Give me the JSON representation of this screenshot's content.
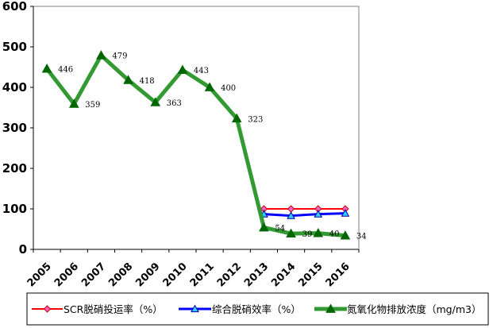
{
  "chart_data": {
    "type": "line",
    "title": "",
    "xlabel": "",
    "ylabel": "",
    "categories": [
      "2005",
      "2006",
      "2007",
      "2008",
      "2009",
      "2010",
      "2011",
      "2012",
      "2013",
      "2014",
      "2015",
      "2016"
    ],
    "ylim": [
      0,
      600
    ],
    "yticks": [
      "0",
      "100",
      "200",
      "300",
      "400",
      "500",
      "600"
    ],
    "grid": false,
    "legend_position": "bottom",
    "series": [
      {
        "name": "SCR脱硝投运率（%）",
        "color": "#ff0000",
        "marker": "diamond",
        "marker_fill": "#ff66cc",
        "values": [
          null,
          null,
          null,
          null,
          null,
          null,
          null,
          null,
          100,
          100,
          100,
          100
        ],
        "labels": []
      },
      {
        "name": "综合脱硝效率（%）",
        "color": "#0000ff",
        "marker": "triangle",
        "marker_fill": "#33ccff",
        "values": [
          null,
          null,
          null,
          null,
          null,
          null,
          null,
          null,
          87,
          83,
          87,
          89
        ],
        "labels": []
      },
      {
        "name": "氮氧化物排放浓度（mg/m3）",
        "color": "#339933",
        "marker": "triangle",
        "marker_fill": "#006600",
        "values": [
          446,
          359,
          479,
          418,
          363,
          443,
          400,
          323,
          54,
          39,
          40,
          34
        ],
        "labels": [
          "446",
          "359",
          "479",
          "418",
          "363",
          "443",
          "400",
          "323",
          "54",
          "39",
          "40",
          "34"
        ]
      }
    ]
  }
}
